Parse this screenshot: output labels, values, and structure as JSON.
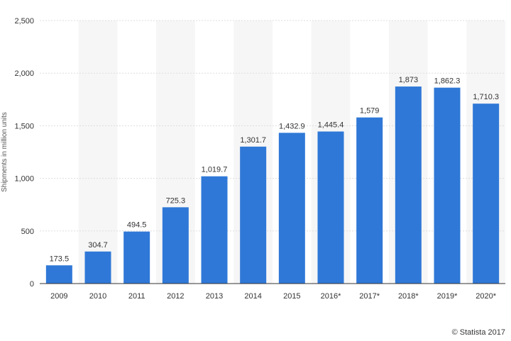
{
  "credit": "© Statista 2017",
  "colors": {
    "bar": "#2f78d7",
    "band": "#f6f6f6",
    "grid": "#dddddd",
    "axis": "#333333"
  },
  "chart_data": {
    "type": "bar",
    "title": "",
    "xlabel": "",
    "ylabel": "Shipments in million units",
    "categories": [
      "2009",
      "2010",
      "2011",
      "2012",
      "2013",
      "2014",
      "2015",
      "2016*",
      "2017*",
      "2018*",
      "2019*",
      "2020*"
    ],
    "values": [
      173.5,
      304.7,
      494.5,
      725.3,
      1019.7,
      1301.7,
      1432.9,
      1445.4,
      1579,
      1873,
      1862.3,
      1710.3
    ],
    "value_labels": [
      "173.5",
      "304.7",
      "494.5",
      "725.3",
      "1,019.7",
      "1,301.7",
      "1,432.9",
      "1,445.4",
      "1,579",
      "1,873",
      "1,862.3",
      "1,710.3"
    ],
    "yticks": [
      0,
      500,
      1000,
      1500,
      2000,
      2500
    ],
    "ytick_labels": [
      "0",
      "500",
      "1,000",
      "1,500",
      "2,000",
      "2,500"
    ],
    "ylim": [
      0,
      2500
    ],
    "grid": true,
    "legend": "none"
  }
}
